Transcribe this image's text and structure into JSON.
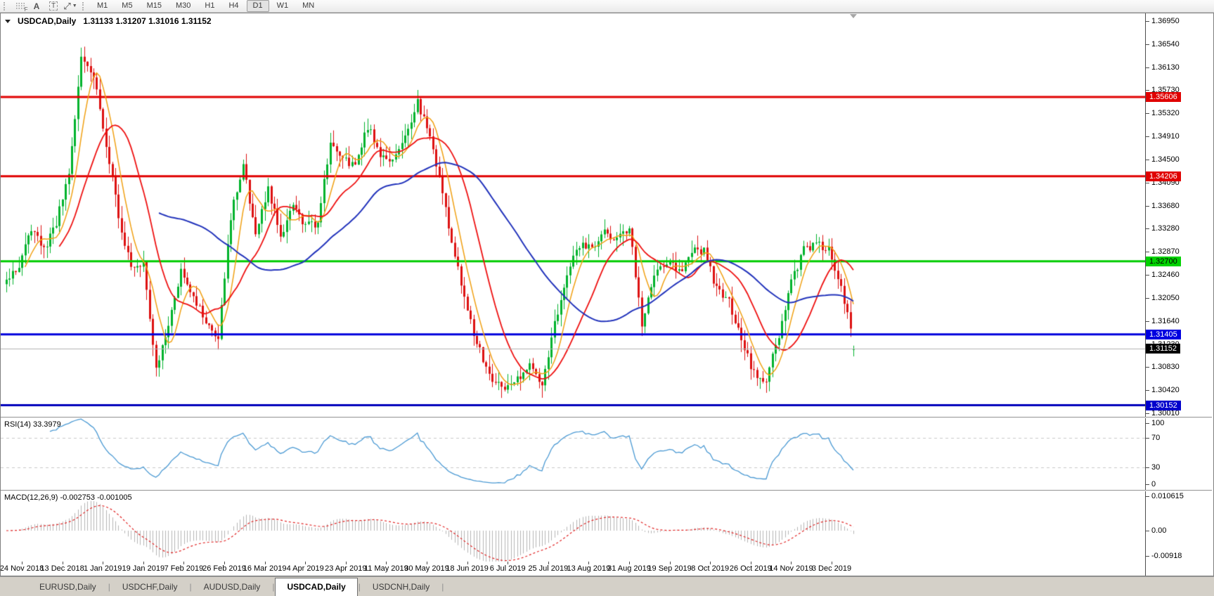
{
  "toolbar": {
    "timeframes": [
      "M1",
      "M5",
      "M15",
      "M30",
      "H1",
      "H4",
      "D1",
      "W1",
      "MN"
    ],
    "active_timeframe": "D1",
    "icon_tools": [
      "grid-f-icon",
      "text-a-icon",
      "text-label-icon",
      "cursor-arrows-icon"
    ]
  },
  "chart_header": {
    "symbol_label": "USDCAD,Daily",
    "ohlc_label": "1.31133 1.31207 1.31016 1.31152"
  },
  "price_axis": {
    "ticks": [
      "1.36950",
      "1.36540",
      "1.36130",
      "1.35730",
      "1.35320",
      "1.34910",
      "1.34500",
      "1.34090",
      "1.33680",
      "1.33280",
      "1.32870",
      "1.32460",
      "1.32050",
      "1.31640",
      "1.31230",
      "1.30830",
      "1.30420",
      "1.30010"
    ],
    "markers": [
      {
        "label": "1.35606",
        "value": 1.35606,
        "bg": "#e00000",
        "fg": "#ffffff"
      },
      {
        "label": "1.34206",
        "value": 1.34206,
        "bg": "#e00000",
        "fg": "#ffffff"
      },
      {
        "label": "1.32700",
        "value": 1.327,
        "bg": "#00d200",
        "fg": "#000000"
      },
      {
        "label": "1.31405",
        "value": 1.31405,
        "bg": "#0000e0",
        "fg": "#ffffff"
      },
      {
        "label": "1.31152",
        "value": 1.31152,
        "bg": "#000000",
        "fg": "#ffffff"
      },
      {
        "label": "1.30152",
        "value": 1.30152,
        "bg": "#0000cc",
        "fg": "#ffffff"
      }
    ]
  },
  "price_lines": [
    {
      "value": 1.35606,
      "color": "#e00000",
      "width": 3
    },
    {
      "value": 1.34206,
      "color": "#e00000",
      "width": 3
    },
    {
      "value": 1.327,
      "color": "#00cc00",
      "width": 3
    },
    {
      "value": 1.31405,
      "color": "#0000dd",
      "width": 3
    },
    {
      "value": 1.30152,
      "color": "#0000bb",
      "width": 3
    }
  ],
  "current_price_line": {
    "value": 1.31152,
    "color": "#b0b0b0",
    "width": 1
  },
  "rsi": {
    "label": "RSI(14) 33.3979",
    "period": 14,
    "current": 33.3979,
    "line_color": "#4a99d3",
    "level_lines": [
      70,
      30
    ],
    "axis_ticks": [
      {
        "label": "100",
        "value": 100
      },
      {
        "label": "70",
        "value": 70
      },
      {
        "label": "30",
        "value": 30
      },
      {
        "label": "0",
        "value": 0
      }
    ]
  },
  "macd": {
    "label": "MACD(12,26,9) -0.002753 -0.001005",
    "fast": 12,
    "slow": 26,
    "signal": 9,
    "current_main": -0.002753,
    "current_signal": -0.001005,
    "hist_color": "#b4b4b4",
    "signal_color": "#e02020",
    "axis_ticks": [
      {
        "label": "0.010615",
        "value": 0.010615
      },
      {
        "label": "0.00",
        "value": 0
      },
      {
        "label": "-0.00918",
        "value": -0.00918
      }
    ]
  },
  "date_axis": [
    "24 Nov 2018",
    "13 Dec 2018",
    "1 Jan 2019",
    "19 Jan 2019",
    "7 Feb 2019",
    "26 Feb 2019",
    "16 Mar 2019",
    "4 Apr 2019",
    "23 Apr 2019",
    "11 May 2019",
    "30 May 2019",
    "18 Jun 2019",
    "6 Jul 2019",
    "25 Jul 2019",
    "13 Aug 2019",
    "31 Aug 2019",
    "19 Sep 2019",
    "8 Oct 2019",
    "26 Oct 2019",
    "14 Nov 2019",
    "3 Dec 2019"
  ],
  "tabs": [
    {
      "label": "EURUSD,Daily",
      "active": false
    },
    {
      "label": "USDCHF,Daily",
      "active": false
    },
    {
      "label": "AUDUSD,Daily",
      "active": false
    },
    {
      "label": "USDCAD,Daily",
      "active": true
    },
    {
      "label": "USDCNH,Daily",
      "active": false
    }
  ],
  "chart_data": {
    "type": "candlestick",
    "symbol": "USDCAD",
    "timeframe": "Daily",
    "x_range": [
      "24 Nov 2018",
      "17 Dec 2019"
    ],
    "y_range": [
      1.3001,
      1.3695
    ],
    "current_ohlc": {
      "open": 1.31133,
      "high": 1.31207,
      "low": 1.31016,
      "close": 1.31152
    },
    "up_color": "#00b22c",
    "down_color": "#dd1111",
    "ma_lines": [
      {
        "name": "fast-ma",
        "period": 7,
        "color": "#f0a013",
        "width": 1.5
      },
      {
        "name": "mid-ma",
        "period": 18,
        "color": "#ee1111",
        "width": 1.8
      },
      {
        "name": "slow-ma",
        "period": 50,
        "color": "#2233bb",
        "width": 2
      }
    ],
    "anchor_step": 4,
    "close_anchors": [
      1.3235,
      1.326,
      1.333,
      1.329,
      1.334,
      1.342,
      1.363,
      1.36,
      1.348,
      1.335,
      1.326,
      1.327,
      1.308,
      1.315,
      1.326,
      1.321,
      1.316,
      1.314,
      1.335,
      1.344,
      1.331,
      1.34,
      1.331,
      1.337,
      1.333,
      1.334,
      1.348,
      1.345,
      1.344,
      1.351,
      1.346,
      1.345,
      1.349,
      1.355,
      1.349,
      1.339,
      1.328,
      1.318,
      1.311,
      1.306,
      1.304,
      1.306,
      1.309,
      1.305,
      1.316,
      1.325,
      1.33,
      1.329,
      1.332,
      1.331,
      1.333,
      1.316,
      1.325,
      1.327,
      1.325,
      1.329,
      1.329,
      1.322,
      1.32,
      1.313,
      1.307,
      1.306,
      1.314,
      1.323,
      1.329,
      1.33,
      1.329,
      1.323,
      1.3115
    ]
  }
}
